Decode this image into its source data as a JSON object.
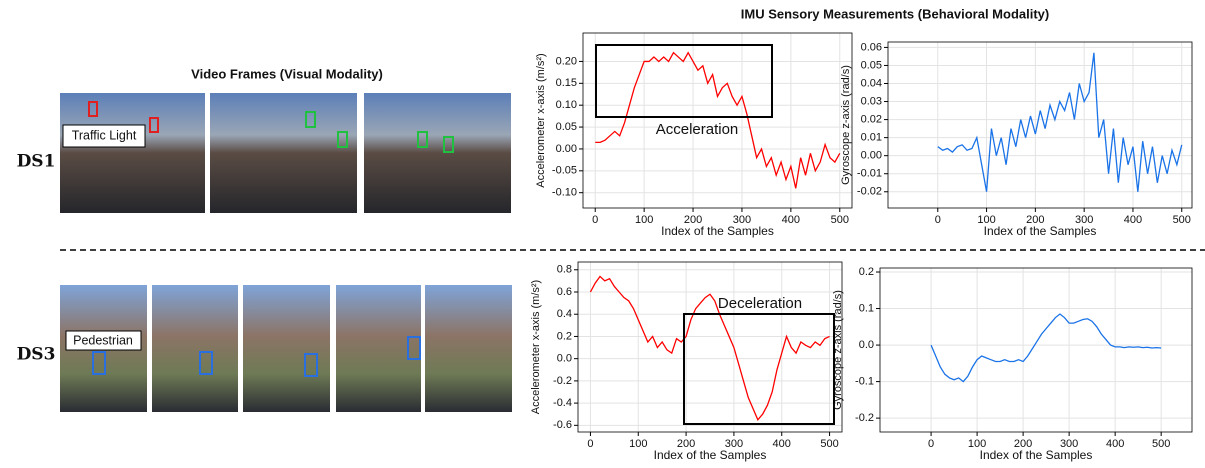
{
  "titles": {
    "video": "Video Frames (Visual Modality)",
    "imu": "IMU Sensory Measurements (Behavioral Modality)"
  },
  "rows": [
    {
      "label": "DS1",
      "object": "Traffic Light"
    },
    {
      "label": "DS3",
      "object": "Pedestrian"
    }
  ],
  "chart_data": [
    {
      "type": "line",
      "xlabel": "Index of the Samples",
      "ylabel": "Accelerometer x-axis (m/s²)",
      "color": "#ff0000",
      "grid": true,
      "annotation": "Acceleration",
      "xlim": [
        -25,
        525
      ],
      "xticks": [
        0,
        100,
        200,
        300,
        400,
        500
      ],
      "ylim": [
        -0.135,
        0.265
      ],
      "yticks": [
        {
          "value": -0.1,
          "label": "-0.10"
        },
        -0.05,
        {
          "value": 0,
          "label": "0.00"
        },
        0.05,
        {
          "value": 0.1,
          "label": "0.10"
        },
        0.15,
        {
          "value": 0.2,
          "label": "0.20"
        }
      ],
      "x": [
        0,
        10,
        20,
        30,
        40,
        50,
        60,
        70,
        80,
        90,
        100,
        110,
        120,
        130,
        140,
        150,
        160,
        170,
        180,
        190,
        200,
        210,
        220,
        230,
        240,
        250,
        260,
        270,
        280,
        290,
        300,
        310,
        320,
        330,
        340,
        350,
        360,
        370,
        380,
        390,
        400,
        410,
        420,
        430,
        440,
        450,
        460,
        470,
        480,
        490,
        500
      ],
      "values": [
        0.015,
        0.015,
        0.02,
        0.03,
        0.04,
        0.03,
        0.06,
        0.1,
        0.14,
        0.17,
        0.2,
        0.2,
        0.21,
        0.2,
        0.21,
        0.2,
        0.22,
        0.21,
        0.2,
        0.22,
        0.2,
        0.18,
        0.19,
        0.15,
        0.17,
        0.12,
        0.14,
        0.15,
        0.12,
        0.1,
        0.12,
        0.08,
        0.03,
        -0.02,
        0.0,
        -0.04,
        -0.02,
        -0.06,
        -0.03,
        -0.07,
        -0.04,
        -0.09,
        -0.02,
        -0.06,
        -0.01,
        -0.05,
        -0.03,
        0.01,
        -0.02,
        -0.03,
        -0.01
      ]
    },
    {
      "type": "line",
      "xlabel": "Index of the Samples",
      "ylabel": "Gyroscope  z-axis (rad/s)",
      "color": "#1a73e8",
      "grid": true,
      "xlim": [
        -102,
        521
      ],
      "xticks": [
        0,
        100,
        200,
        300,
        400,
        500
      ],
      "ylim": [
        -0.029,
        0.063
      ],
      "yticks": [
        -0.02,
        -0.01,
        {
          "value": 0,
          "label": "0.00"
        },
        0.01,
        0.02,
        0.03,
        0.04,
        0.05,
        0.06
      ],
      "x": [
        0,
        10,
        20,
        30,
        40,
        50,
        60,
        70,
        80,
        90,
        100,
        110,
        120,
        130,
        140,
        150,
        160,
        170,
        180,
        190,
        200,
        210,
        220,
        230,
        240,
        250,
        260,
        270,
        280,
        290,
        300,
        310,
        320,
        330,
        340,
        350,
        360,
        370,
        380,
        390,
        400,
        410,
        420,
        430,
        440,
        450,
        460,
        470,
        480,
        490,
        500
      ],
      "values": [
        0.005,
        0.003,
        0.004,
        0.002,
        0.005,
        0.006,
        0.003,
        0.004,
        0.01,
        -0.005,
        -0.02,
        0.015,
        0.0,
        0.01,
        -0.005,
        0.015,
        0.005,
        0.02,
        0.01,
        0.022,
        0.012,
        0.025,
        0.015,
        0.028,
        0.02,
        0.03,
        0.025,
        0.035,
        0.02,
        0.04,
        0.03,
        0.035,
        0.057,
        0.01,
        0.02,
        -0.01,
        0.015,
        -0.015,
        0.01,
        -0.005,
        0.005,
        -0.02,
        0.008,
        -0.01,
        0.005,
        -0.015,
        0.0,
        -0.01,
        0.003,
        -0.005,
        0.006
      ]
    },
    {
      "type": "line",
      "xlabel": "Index of the Samples",
      "ylabel": "Accelerometer x-axis (m/s²)",
      "color": "#ff0000",
      "grid": true,
      "annotation": "Deceleration",
      "xlim": [
        -26,
        526
      ],
      "xticks": [
        0,
        100,
        200,
        300,
        400,
        500
      ],
      "ylim": [
        -0.66,
        0.87
      ],
      "yticks": [
        -0.6,
        -0.4,
        -0.2,
        {
          "value": 0,
          "label": "0.0"
        },
        0.2,
        0.4,
        0.6,
        0.8
      ],
      "x": [
        0,
        10,
        20,
        30,
        40,
        50,
        60,
        70,
        80,
        90,
        100,
        110,
        120,
        130,
        140,
        150,
        160,
        170,
        180,
        190,
        200,
        210,
        220,
        230,
        240,
        250,
        260,
        270,
        280,
        290,
        300,
        310,
        320,
        330,
        340,
        350,
        360,
        370,
        380,
        390,
        400,
        410,
        420,
        430,
        440,
        450,
        460,
        470,
        480,
        490,
        500
      ],
      "values": [
        0.6,
        0.68,
        0.74,
        0.7,
        0.72,
        0.65,
        0.6,
        0.55,
        0.52,
        0.45,
        0.35,
        0.25,
        0.15,
        0.2,
        0.1,
        0.15,
        0.08,
        0.05,
        0.18,
        0.15,
        0.2,
        0.35,
        0.45,
        0.5,
        0.55,
        0.58,
        0.52,
        0.4,
        0.3,
        0.2,
        0.1,
        -0.05,
        -0.2,
        -0.35,
        -0.45,
        -0.55,
        -0.5,
        -0.42,
        -0.3,
        -0.1,
        0.05,
        0.2,
        0.1,
        0.05,
        0.15,
        0.12,
        0.1,
        0.15,
        0.12,
        0.18,
        0.2
      ]
    },
    {
      "type": "line",
      "xlabel": "Index of the Samples",
      "ylabel": "Gyroscope  z-axis (rad/s)",
      "color": "#1a73e8",
      "grid": true,
      "xlim": [
        -111,
        567
      ],
      "xticks": [
        0,
        100,
        200,
        300,
        400,
        500
      ],
      "ylim": [
        -0.238,
        0.211
      ],
      "yticks": [
        -0.2,
        -0.1,
        {
          "value": 0,
          "label": "0.0"
        },
        0.1,
        0.2
      ],
      "x": [
        0,
        10,
        20,
        30,
        40,
        50,
        60,
        70,
        80,
        90,
        100,
        110,
        120,
        130,
        140,
        150,
        160,
        170,
        180,
        190,
        200,
        210,
        220,
        230,
        240,
        250,
        260,
        270,
        280,
        290,
        300,
        310,
        320,
        330,
        340,
        350,
        360,
        370,
        380,
        390,
        400,
        410,
        420,
        430,
        440,
        450,
        460,
        470,
        480,
        490,
        500
      ],
      "values": [
        0.0,
        -0.03,
        -0.06,
        -0.08,
        -0.09,
        -0.095,
        -0.09,
        -0.1,
        -0.085,
        -0.06,
        -0.04,
        -0.03,
        -0.035,
        -0.04,
        -0.045,
        -0.045,
        -0.04,
        -0.045,
        -0.045,
        -0.04,
        -0.045,
        -0.03,
        -0.01,
        0.01,
        0.03,
        0.045,
        0.06,
        0.075,
        0.085,
        0.075,
        0.06,
        0.06,
        0.065,
        0.07,
        0.072,
        0.065,
        0.05,
        0.03,
        0.015,
        0.0,
        -0.005,
        -0.005,
        -0.007,
        -0.005,
        -0.006,
        -0.005,
        -0.007,
        -0.006,
        -0.008,
        -0.007,
        -0.008
      ]
    }
  ]
}
